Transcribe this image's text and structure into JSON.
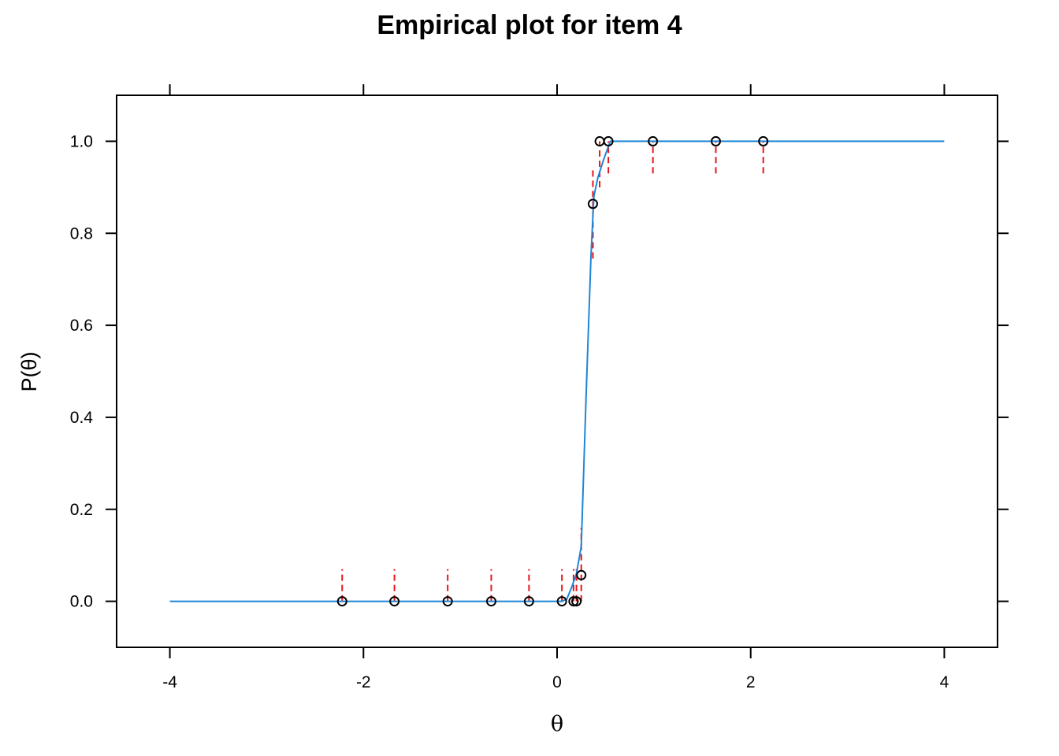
{
  "chart_data": {
    "type": "line",
    "title": "Empirical plot for item 4",
    "xlabel": "θ",
    "ylabel": "P(θ)",
    "xlim": [
      -4.55,
      4.55
    ],
    "ylim": [
      -0.1,
      1.1
    ],
    "x_ticks": [
      -4,
      -2,
      0,
      2,
      4
    ],
    "y_ticks": [
      0.0,
      0.2,
      0.4,
      0.6,
      0.8,
      1.0
    ],
    "x_tick_labels": [
      "-4",
      "-2",
      "0",
      "2",
      "4"
    ],
    "y_tick_labels": [
      "0.0",
      "0.2",
      "0.4",
      "0.6",
      "0.8",
      "1.0"
    ],
    "grid": false,
    "colors": {
      "curve": "#1f86d6",
      "points": "#000000",
      "errors": "#e8141b"
    },
    "series": [
      {
        "kind": "curve",
        "x": [
          -4,
          0.05,
          0.1,
          0.15,
          0.2,
          0.25,
          0.3,
          0.35,
          0.38,
          0.42,
          0.48,
          0.55,
          0.75,
          4
        ],
        "y": [
          0,
          0,
          0.005,
          0.03,
          0.06,
          0.12,
          0.45,
          0.75,
          0.88,
          0.92,
          0.96,
          1.0,
          1.0,
          1.0
        ]
      },
      {
        "kind": "points",
        "x": [
          -2.22,
          -1.68,
          -1.13,
          -0.68,
          -0.29,
          0.05,
          0.17,
          0.2,
          0.25,
          0.37,
          0.44,
          0.53,
          0.99,
          1.64,
          2.13
        ],
        "y": [
          0,
          0,
          0,
          0,
          0,
          0,
          0,
          0,
          0.057,
          0.864,
          1.0,
          1.0,
          1.0,
          1.0,
          1.0
        ],
        "err_lo": [
          0,
          0,
          0,
          0,
          0,
          0,
          0,
          0,
          0,
          0.745,
          0.9,
          0.93,
          0.93,
          0.93,
          0.93
        ],
        "err_hi": [
          0.07,
          0.07,
          0.07,
          0.07,
          0.07,
          0.07,
          0.07,
          0.07,
          0.16,
          0.945,
          1.0,
          1.0,
          1.0,
          1.0,
          1.0
        ]
      }
    ]
  }
}
